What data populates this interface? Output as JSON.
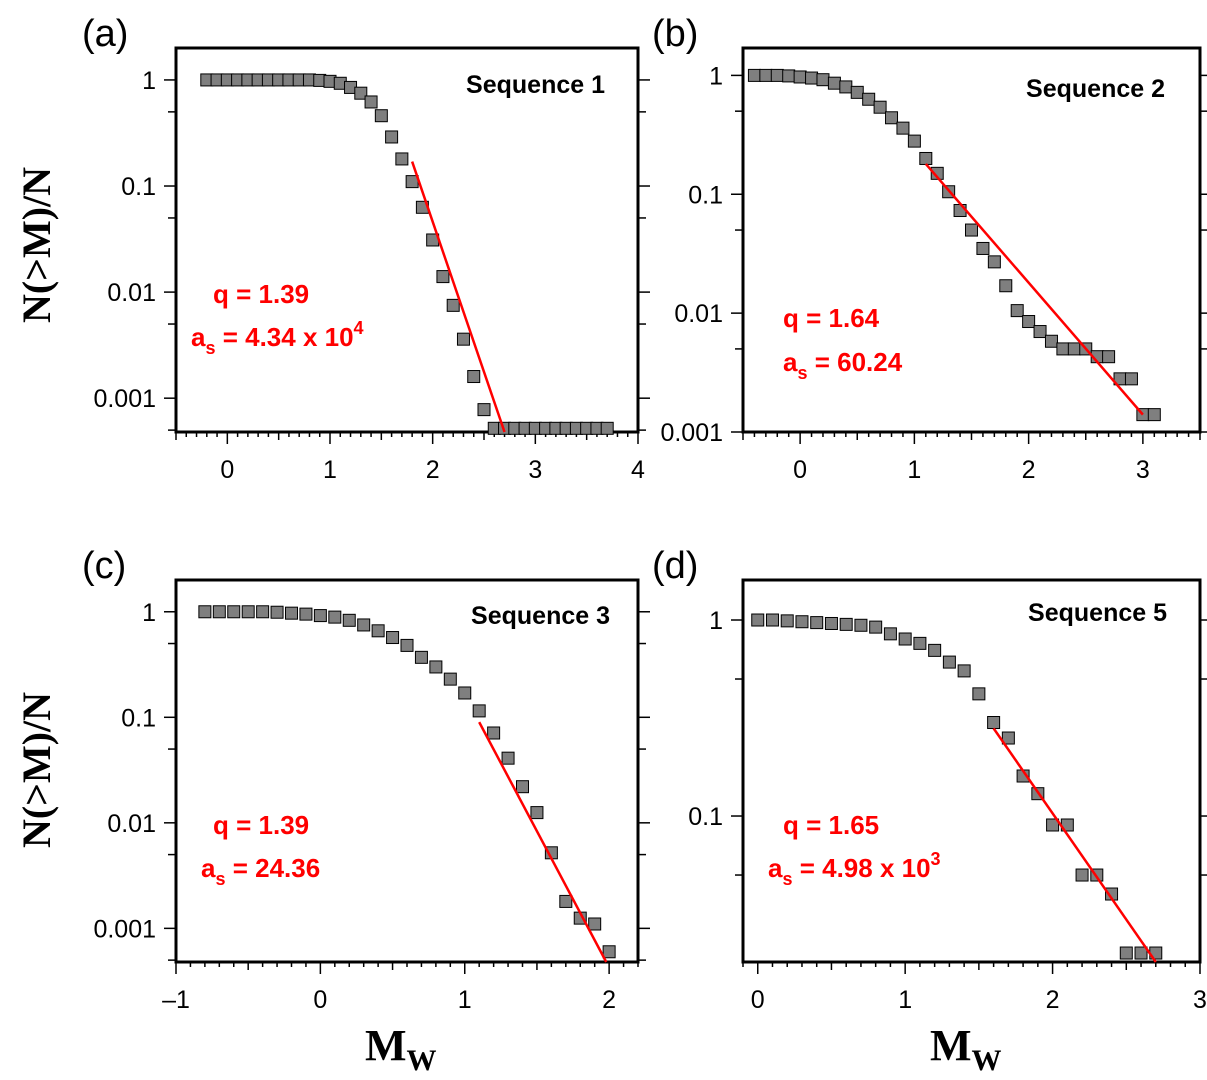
{
  "figure": {
    "ylabel": "N(>M)/N",
    "xlabel_main": "M",
    "xlabel_sub": "W"
  },
  "chart_data": [
    {
      "panel": "(a)",
      "type": "scatter",
      "title": "Sequence 1",
      "log_y": true,
      "xlim": [
        -0.5,
        4
      ],
      "ylim": [
        0.00048,
        2.0
      ],
      "x_ticks": [
        0,
        1,
        2,
        3,
        4
      ],
      "x_tick_labels": [
        "0",
        "1",
        "2",
        "3",
        "4"
      ],
      "y_ticks": [
        1,
        0.1,
        0.01,
        0.001
      ],
      "y_tick_labels": [
        "1",
        "0.1",
        "0.01",
        "0.001"
      ],
      "q_text": "q = 1.39",
      "as_base": "a",
      "as_sub": "s",
      "as_value": " = 4.34 x 10",
      "as_sup": "4",
      "marker_color": "#7f7f7f",
      "fit_color": "#ff0000",
      "points": {
        "x": [
          -0.2,
          -0.1,
          0.0,
          0.1,
          0.2,
          0.3,
          0.4,
          0.5,
          0.6,
          0.7,
          0.8,
          0.9,
          1.0,
          1.1,
          1.2,
          1.3,
          1.4,
          1.5,
          1.6,
          1.7,
          1.8,
          1.9,
          2.0,
          2.1,
          2.2,
          2.3,
          2.4,
          2.5,
          2.6,
          2.7,
          2.8,
          2.9,
          3.0,
          3.1,
          3.2,
          3.3,
          3.4,
          3.5,
          3.6,
          3.7
        ],
        "y": [
          1.0,
          1.0,
          1.0,
          1.0,
          1.0,
          1.0,
          1.0,
          1.0,
          1.0,
          1.0,
          1.0,
          0.99,
          0.97,
          0.93,
          0.85,
          0.75,
          0.62,
          0.46,
          0.29,
          0.18,
          0.11,
          0.063,
          0.031,
          0.014,
          0.0075,
          0.0036,
          0.0016,
          0.00078,
          0.00052,
          0.00052,
          0.00052,
          0.00052,
          0.00052,
          0.00052,
          0.00052,
          0.00052,
          0.00052,
          0.00052,
          0.00052,
          0.00052
        ]
      },
      "fit": {
        "x": [
          1.8,
          2.7
        ],
        "y": [
          0.17,
          0.00048
        ]
      }
    },
    {
      "panel": "(b)",
      "type": "scatter",
      "title": "Sequence 2",
      "log_y": true,
      "xlim": [
        -0.5,
        3.5
      ],
      "ylim": [
        0.001,
        1.7
      ],
      "x_ticks": [
        0,
        1,
        2,
        3
      ],
      "x_tick_labels": [
        "0",
        "1",
        "2",
        "3"
      ],
      "y_ticks": [
        1,
        0.1,
        0.01,
        0.001
      ],
      "y_tick_labels": [
        "1",
        "0.1",
        "0.01",
        "0.001"
      ],
      "q_text": "q = 1.64",
      "as_base": "a",
      "as_sub": "s",
      "as_value": " = 60.24",
      "as_sup": "",
      "marker_color": "#7f7f7f",
      "fit_color": "#ff0000",
      "points": {
        "x": [
          -0.4,
          -0.3,
          -0.2,
          -0.1,
          0.0,
          0.1,
          0.2,
          0.3,
          0.4,
          0.5,
          0.6,
          0.7,
          0.8,
          0.9,
          1.0,
          1.1,
          1.2,
          1.3,
          1.4,
          1.5,
          1.6,
          1.7,
          1.8,
          1.9,
          2.0,
          2.1,
          2.2,
          2.3,
          2.4,
          2.5,
          2.6,
          2.7,
          2.8,
          2.9,
          3.0,
          3.1
        ],
        "y": [
          1.0,
          1.0,
          1.0,
          0.99,
          0.97,
          0.95,
          0.92,
          0.86,
          0.8,
          0.72,
          0.63,
          0.54,
          0.44,
          0.36,
          0.28,
          0.2,
          0.15,
          0.105,
          0.073,
          0.05,
          0.035,
          0.027,
          0.017,
          0.0105,
          0.0085,
          0.007,
          0.0058,
          0.005,
          0.005,
          0.005,
          0.0043,
          0.0043,
          0.0028,
          0.0028,
          0.0014,
          0.0014
        ]
      },
      "fit": {
        "x": [
          1.1,
          3.0
        ],
        "y": [
          0.18,
          0.0014
        ]
      }
    },
    {
      "panel": "(c)",
      "type": "scatter",
      "title": "Sequence 3",
      "log_y": true,
      "xlim": [
        -1,
        2.2
      ],
      "ylim": [
        0.00048,
        2.0
      ],
      "x_ticks": [
        -1,
        0,
        1,
        2
      ],
      "x_tick_labels": [
        "–1",
        "0",
        "1",
        "2"
      ],
      "y_ticks": [
        1,
        0.1,
        0.01,
        0.001
      ],
      "y_tick_labels": [
        "1",
        "0.1",
        "0.01",
        "0.001"
      ],
      "q_text": "q = 1.39",
      "as_base": "a",
      "as_sub": "s",
      "as_value": " = 24.36",
      "as_sup": "",
      "marker_color": "#7f7f7f",
      "fit_color": "#ff0000",
      "points": {
        "x": [
          -0.8,
          -0.7,
          -0.6,
          -0.5,
          -0.4,
          -0.3,
          -0.2,
          -0.1,
          0.0,
          0.1,
          0.2,
          0.3,
          0.4,
          0.5,
          0.6,
          0.7,
          0.8,
          0.9,
          1.0,
          1.1,
          1.2,
          1.3,
          1.4,
          1.5,
          1.6,
          1.7,
          1.8,
          1.9,
          2.0
        ],
        "y": [
          1.0,
          1.0,
          1.0,
          1.0,
          1.0,
          0.99,
          0.97,
          0.95,
          0.92,
          0.89,
          0.83,
          0.75,
          0.66,
          0.57,
          0.48,
          0.37,
          0.3,
          0.23,
          0.17,
          0.115,
          0.071,
          0.041,
          0.022,
          0.0125,
          0.0052,
          0.0018,
          0.00125,
          0.0011,
          0.0006
        ]
      },
      "fit": {
        "x": [
          1.1,
          1.98
        ],
        "y": [
          0.09,
          0.00048
        ]
      }
    },
    {
      "panel": "(d)",
      "type": "scatter",
      "title": "Sequence 5",
      "log_y": true,
      "xlim": [
        -0.1,
        3
      ],
      "ylim": [
        0.018,
        1.6
      ],
      "x_ticks": [
        0,
        1,
        2,
        3
      ],
      "x_tick_labels": [
        "0",
        "1",
        "2",
        "3"
      ],
      "y_ticks": [
        1,
        0.1
      ],
      "y_tick_labels": [
        "1",
        "0.1"
      ],
      "q_text": "q = 1.65",
      "as_base": "a",
      "as_sub": "s",
      "as_value": " = 4.98 x 10",
      "as_sup": "3",
      "marker_color": "#7f7f7f",
      "fit_color": "#ff0000",
      "points": {
        "x": [
          0.0,
          0.1,
          0.2,
          0.3,
          0.4,
          0.5,
          0.6,
          0.7,
          0.8,
          0.9,
          1.0,
          1.1,
          1.2,
          1.3,
          1.4,
          1.5,
          1.6,
          1.7,
          1.8,
          1.9,
          2.0,
          2.1,
          2.2,
          2.3,
          2.4,
          2.5,
          2.6,
          2.7
        ],
        "y": [
          1.0,
          1.0,
          0.99,
          0.98,
          0.97,
          0.96,
          0.95,
          0.94,
          0.92,
          0.85,
          0.8,
          0.76,
          0.7,
          0.61,
          0.55,
          0.42,
          0.3,
          0.25,
          0.16,
          0.13,
          0.09,
          0.09,
          0.05,
          0.05,
          0.04,
          0.02,
          0.02,
          0.02
        ]
      },
      "fit": {
        "x": [
          1.6,
          2.7
        ],
        "y": [
          0.28,
          0.018
        ]
      }
    }
  ]
}
